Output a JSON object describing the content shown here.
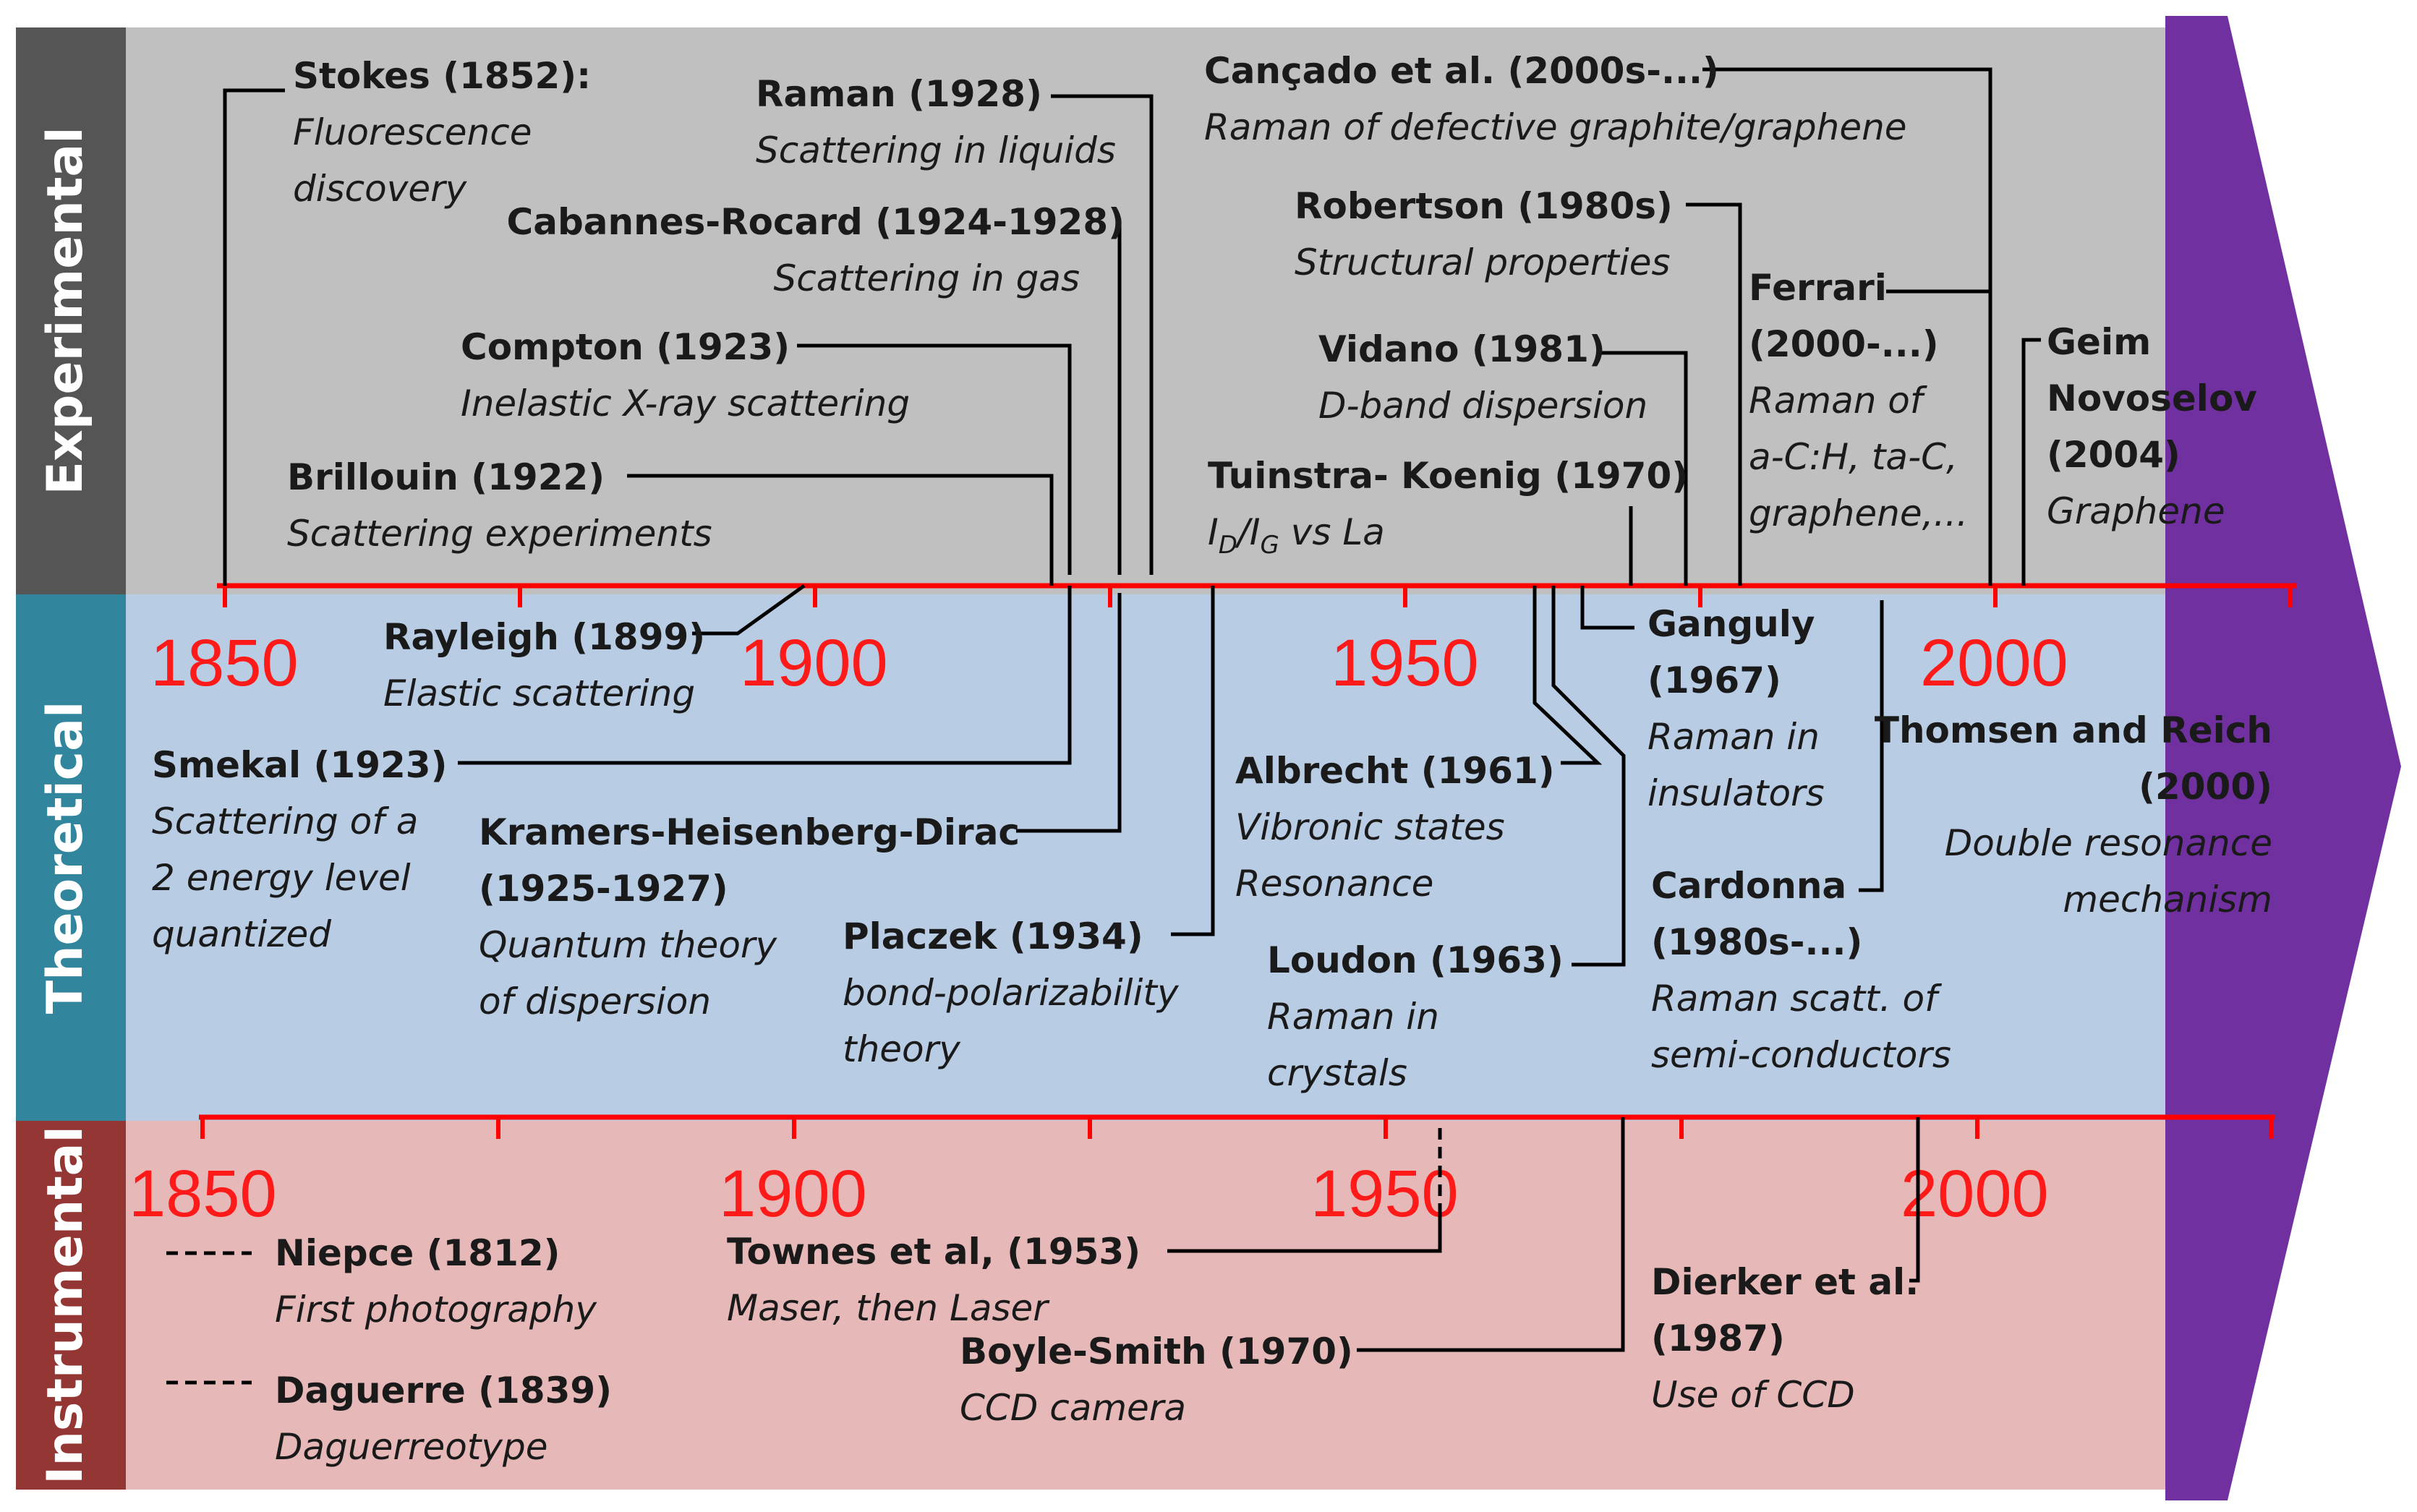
{
  "colors": {
    "experimental_bg": "#c0c0c0",
    "experimental_label_bg": "#555555",
    "theoretical_bg": "#b8cce4",
    "theoretical_label_bg": "#31859c",
    "instrumental_bg": "#e6b9b8",
    "instrumental_label_bg": "#943634",
    "arrow": "#7030a0",
    "axis": "#ff0000"
  },
  "sections": {
    "experimental": "Experimental",
    "theoretical": "Theoretical",
    "instrumental": "Instrumental"
  },
  "axis_upper": {
    "start": 1850,
    "end": 2000,
    "year_labels": [
      "1850",
      "1900",
      "1950",
      "2000"
    ]
  },
  "axis_lower": {
    "start": 1850,
    "end": 2000,
    "year_labels": [
      "1850",
      "1900",
      "1950",
      "2000"
    ]
  },
  "events": {
    "stokes": {
      "title": "Stokes (1852):",
      "desc1": "Fluorescence",
      "desc2": "discovery"
    },
    "raman": {
      "title": "Raman (1928)",
      "desc": "Scattering in liquids"
    },
    "cabannes": {
      "title": "Cabannes-Rocard (1924-1928)",
      "desc": "Scattering in gas"
    },
    "compton": {
      "title": "Compton (1923)",
      "desc": "Inelastic X-ray scattering"
    },
    "brillouin": {
      "title": "Brillouin (1922)",
      "desc": "Scattering experiments"
    },
    "cancado": {
      "title": "Cançado et al. (2000s-...)",
      "desc": "Raman of defective graphite/graphene"
    },
    "robertson": {
      "title": "Robertson (1980s)",
      "desc": "Structural properties"
    },
    "vidano": {
      "title": "Vidano (1981)",
      "desc": "D-band dispersion"
    },
    "tuinstra": {
      "title": "Tuinstra- Koenig (1970)",
      "desc_i": "I",
      "desc_d": "D",
      "desc_slash": "/I",
      "desc_g": "G",
      "desc_rest": " vs La"
    },
    "ferrari": {
      "title1": "Ferrari",
      "title2": "(2000-...)",
      "desc1": "Raman of",
      "desc2": "a-C:H, ta-C,",
      "desc3": "graphene,..."
    },
    "geim": {
      "title1": "Geim",
      "title2": "Novoselov",
      "title3": "(2004)",
      "desc": "Graphene"
    },
    "rayleigh": {
      "title": "Rayleigh (1899)",
      "desc": "Elastic scattering"
    },
    "smekal": {
      "title": "Smekal (1923)",
      "desc1": "Scattering of a",
      "desc2": "2 energy level",
      "desc3": "quantized"
    },
    "kramers": {
      "title1": "Kramers-Heisenberg-Dirac",
      "title2": "(1925-1927)",
      "desc1": "Quantum theory",
      "desc2": "of dispersion"
    },
    "placzek": {
      "title": "Placzek (1934)",
      "desc1": "bond-polarizability",
      "desc2": "theory"
    },
    "albrecht": {
      "title": "Albrecht (1961)",
      "desc1": "Vibronic states",
      "desc2": "Resonance"
    },
    "loudon": {
      "title": "Loudon (1963)",
      "desc1": "Raman in",
      "desc2": "crystals"
    },
    "ganguly": {
      "title1": "Ganguly",
      "title2": "(1967)",
      "desc1": "Raman in",
      "desc2": "insulators"
    },
    "cardonna": {
      "title1": "Cardonna",
      "title2": "(1980s-...)",
      "desc1": "Raman scatt. of",
      "desc2": "semi-conductors"
    },
    "thomsen": {
      "title1": "Thomsen and Reich",
      "title2": "(2000)",
      "desc1": "Double resonance",
      "desc2": "mechanism"
    },
    "niepce": {
      "title": "Niepce (1812)",
      "desc": "First photography"
    },
    "daguerre": {
      "title": "Daguerre (1839)",
      "desc": "Daguerreotype"
    },
    "townes": {
      "title": "Townes et al, (1953)",
      "desc": "Maser, then Laser"
    },
    "boyle": {
      "title": "Boyle-Smith (1970)",
      "desc": "CCD camera"
    },
    "dierker": {
      "title1": "Dierker et al.",
      "title2": "(1987)",
      "desc": "Use of CCD"
    }
  }
}
